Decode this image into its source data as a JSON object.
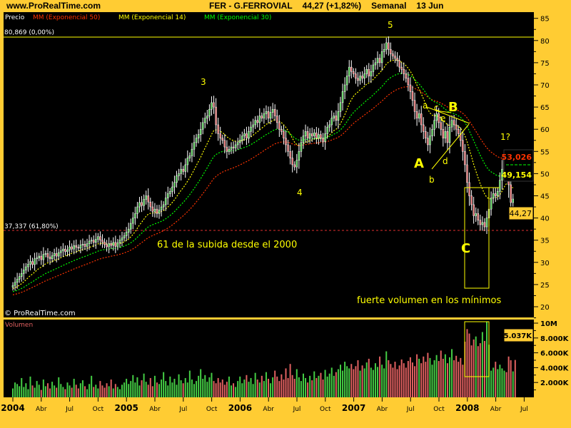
{
  "header": {
    "site": "www.ProRealTime.com",
    "symbol": "FER - G.FERROVIAL",
    "quote": "44,27 (+1,82%)",
    "period": "Semanal",
    "date": "13 Jun"
  },
  "legend": {
    "price": "Precio",
    "ema50": "MM (Exponencial 50)",
    "ema14": "MM (Exponencial 14)",
    "ema30": "MM (Exponencial 30)"
  },
  "colors": {
    "background": "#000000",
    "frame": "#FFCC33",
    "ema50": "#FF3300",
    "ema14": "#FFFF00",
    "ema30": "#00FF00",
    "up": "#44CC44",
    "down": "#E06060",
    "annotation": "#FFFF00"
  },
  "levels": {
    "high_label": "80,869 (0,00%)",
    "fib_label": "37,337 (61,80%)",
    "high_value": 80.869,
    "fib_value": 37.337
  },
  "copyright": "© ProRealTime.com",
  "volume_title": "Volumen",
  "annotations": {
    "w3": "3",
    "w4": "4",
    "w5": "5",
    "A": "A",
    "B": "B",
    "C": "C",
    "a": "a",
    "b": "b",
    "c": "c",
    "d": "d",
    "e": "e",
    "w1q": "1?",
    "fib_note": "61 de la subida desde el 2000",
    "volume_note": "fuerte volumen en los mínimos"
  },
  "value_labels": {
    "ema50_last": "53,026",
    "ema_last": "49,154",
    "price_last": "44,27",
    "volume_last": "5.037K"
  },
  "chart_data": [
    {
      "type": "candlestick",
      "title": "FER - G.FERROVIAL",
      "interval": "weekly",
      "x_range": [
        "2004-01",
        "2008-06-13"
      ],
      "ylim": [
        20,
        85
      ],
      "y_ticks": [
        "85",
        "80",
        "75",
        "70",
        "65",
        "60",
        "55",
        "50",
        "45",
        "40",
        "35",
        "30",
        "25",
        "20"
      ],
      "x_ticks": [
        "2004",
        "Abr",
        "Jul",
        "Oct",
        "2005",
        "Abr",
        "Jul",
        "Oct",
        "2006",
        "Abr",
        "Jul",
        "Oct",
        "2007",
        "Abr",
        "Jul",
        "Oct",
        "2008",
        "Abr",
        "Jul"
      ],
      "series": [
        {
          "name": "Precio",
          "close": [
            24.8,
            25.5,
            26.2,
            26.8,
            27.5,
            28.3,
            29.0,
            29.6,
            30.2,
            29.5,
            30.8,
            31.0,
            31.4,
            30.6,
            31.8,
            32.0,
            31.2,
            30.8,
            31.5,
            32.0,
            31.4,
            32.2,
            32.6,
            33.0,
            32.4,
            32.8,
            33.5,
            33.0,
            33.8,
            33.4,
            33.2,
            33.9,
            34.1,
            33.6,
            34.2,
            34.8,
            35.0,
            34.5,
            35.2,
            35.8,
            35.0,
            34.6,
            34.0,
            33.5,
            34.2,
            33.8,
            34.5,
            33.6,
            34.4,
            35.0,
            35.5,
            36.0,
            36.8,
            37.5,
            38.8,
            40.0,
            41.0,
            42.5,
            43.5,
            42.8,
            44.2,
            45.0,
            43.6,
            42.5,
            41.5,
            42.0,
            41.0,
            41.8,
            42.5,
            43.0,
            44.5,
            45.5,
            46.0,
            47.0,
            48.0,
            49.5,
            50.0,
            51.0,
            50.5,
            52.0,
            53.5,
            54.0,
            55.5,
            57.0,
            58.0,
            58.8,
            60.0,
            61.5,
            62.5,
            63.0,
            64.5,
            66.0,
            65.0,
            61.0,
            59.0,
            58.0,
            57.5,
            56.0,
            55.0,
            55.5,
            56.0,
            55.8,
            56.5,
            57.0,
            57.5,
            58.5,
            59.0,
            58.0,
            59.5,
            60.5,
            61.0,
            62.0,
            61.5,
            63.0,
            62.5,
            63.5,
            64.0,
            62.5,
            63.8,
            64.5,
            63.0,
            61.5,
            60.0,
            59.5,
            58.0,
            56.5,
            55.0,
            53.5,
            52.0,
            51.5,
            53.0,
            55.0,
            57.0,
            58.5,
            59.5,
            58.0,
            59.0,
            58.5,
            59.2,
            58.0,
            58.8,
            58.0,
            57.2,
            59.0,
            60.5,
            61.0,
            62.5,
            63.0,
            62.0,
            64.0,
            66.0,
            68.5,
            70.0,
            72.0,
            74.0,
            73.0,
            72.5,
            71.5,
            71.0,
            72.0,
            71.5,
            72.5,
            73.5,
            72.0,
            73.0,
            74.5,
            75.0,
            76.0,
            75.0,
            77.5,
            78.0,
            79.5,
            78.0,
            77.0,
            76.5,
            76.0,
            75.5,
            74.0,
            73.5,
            72.5,
            71.5,
            70.0,
            68.5,
            66.5,
            64.0,
            62.5,
            63.5,
            61.0,
            59.5,
            58.0,
            56.5,
            58.5,
            60.0,
            62.0,
            63.5,
            61.5,
            60.0,
            58.0,
            59.5,
            57.0,
            60.5,
            62.0,
            61.0,
            60.0,
            59.0,
            57.5,
            55.0,
            52.0,
            48.0,
            45.0,
            43.0,
            40.5,
            41.0,
            39.5,
            38.5,
            39.0,
            38.0,
            40.0,
            42.0,
            44.5,
            45.5,
            45.0,
            46.0,
            48.5,
            51.0,
            53.5,
            52.5,
            47.5,
            43.48,
            44.27
          ]
        },
        {
          "name": "MM (Exponencial 50)",
          "period": 50
        },
        {
          "name": "MM (Exponencial 14)",
          "period": 14
        },
        {
          "name": "MM (Exponencial 30)",
          "period": 30
        }
      ]
    },
    {
      "type": "bar",
      "title": "Volumen",
      "unit": "millions of shares",
      "ylim": [
        0,
        10.4
      ],
      "y_ticks": [
        "10M",
        "8.000K",
        "6.000K",
        "4.000K",
        "2.000K"
      ],
      "values": [
        1.2,
        2.0,
        1.8,
        1.5,
        2.6,
        1.4,
        1.9,
        1.1,
        2.8,
        1.6,
        1.3,
        2.2,
        1.7,
        1.0,
        2.4,
        1.5,
        1.9,
        1.2,
        2.1,
        1.6,
        1.3,
        2.7,
        1.8,
        1.4,
        1.1,
        2.0,
        1.6,
        1.3,
        2.5,
        1.7,
        1.2,
        1.9,
        2.3,
        1.5,
        1.1,
        1.8,
        2.9,
        1.4,
        1.7,
        1.2,
        2.2,
        1.6,
        1.3,
        1.9,
        1.5,
        2.4,
        1.2,
        1.8,
        1.4,
        1.1,
        1.7,
        2.0,
        2.5,
        1.8,
        2.2,
        3.0,
        2.0,
        2.7,
        1.6,
        2.3,
        3.2,
        2.1,
        1.7,
        2.6,
        1.5,
        2.9,
        2.0,
        1.8,
        2.4,
        3.4,
        2.2,
        1.6,
        2.8,
        2.0,
        2.5,
        1.7,
        3.1,
        2.3,
        1.9,
        2.6,
        2.0,
        3.6,
        2.4,
        1.8,
        2.2,
        2.9,
        3.8,
        2.5,
        3.0,
        2.1,
        2.7,
        3.3,
        2.2,
        1.9,
        2.6,
        2.0,
        2.4,
        1.7,
        2.1,
        2.8,
        1.6,
        1.9,
        1.4,
        2.2,
        2.8,
        1.9,
        2.4,
        3.0,
        2.1,
        2.6,
        1.8,
        3.3,
        2.4,
        2.0,
        2.9,
        2.2,
        3.4,
        2.5,
        1.9,
        2.7,
        3.6,
        2.8,
        2.2,
        3.1,
        2.4,
        3.9,
        2.6,
        4.5,
        3.0,
        2.5,
        3.8,
        2.7,
        2.2,
        3.2,
        2.6,
        2.0,
        2.9,
        2.3,
        3.5,
        2.6,
        2.9,
        3.3,
        2.4,
        3.7,
        2.8,
        3.2,
        4.0,
        2.9,
        3.4,
        3.8,
        4.4,
        3.6,
        4.8,
        4.2,
        3.9,
        4.5,
        3.8,
        4.2,
        5.0,
        3.6,
        4.3,
        3.9,
        4.7,
        5.2,
        4.0,
        3.7,
        4.6,
        4.1,
        5.5,
        4.4,
        3.9,
        6.2,
        5.0,
        4.5,
        4.0,
        4.8,
        3.8,
        4.3,
        5.1,
        4.6,
        4.0,
        4.9,
        5.4,
        4.7,
        4.2,
        5.8,
        5.2,
        4.6,
        5.5,
        4.8,
        6.0,
        5.3,
        4.4,
        5.0,
        5.7,
        4.9,
        6.3,
        5.2,
        5.8,
        4.6,
        5.4,
        6.5,
        5.0,
        5.6,
        4.8,
        5.3,
        4.4,
        7.5,
        9.2,
        8.6,
        7.0,
        7.8,
        8.2,
        6.9,
        7.3,
        8.8,
        7.6,
        10.2,
        7.1,
        3.6,
        4.0,
        4.8,
        3.8,
        4.4,
        3.9,
        3.6,
        3.4,
        5.5,
        5.0,
        3.5,
        5.037
      ]
    }
  ]
}
